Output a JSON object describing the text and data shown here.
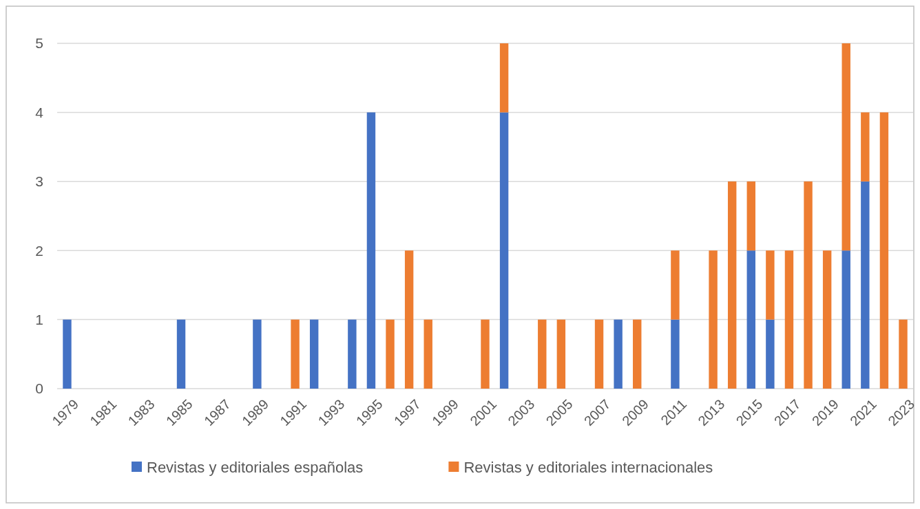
{
  "chart_data": {
    "type": "bar",
    "stacked": true,
    "categories": [
      "1979",
      null,
      "1981",
      null,
      "1983",
      null,
      "1985",
      null,
      "1987",
      null,
      "1989",
      null,
      "1991",
      null,
      "1993",
      null,
      "1995",
      null,
      "1997",
      null,
      "1999",
      null,
      "2001",
      null,
      "2003",
      null,
      "2005",
      null,
      "2007",
      null,
      "2009",
      null,
      "2011",
      null,
      "2013",
      null,
      "2015",
      null,
      "2017",
      null,
      "2019",
      null,
      "2021",
      null,
      "2023"
    ],
    "series": [
      {
        "name": "Revistas y editoriales españolas",
        "color": "#4472c4",
        "values": [
          1,
          0,
          0,
          0,
          0,
          0,
          1,
          0,
          0,
          0,
          1,
          0,
          0,
          1,
          0,
          1,
          4,
          0,
          0,
          0,
          0,
          0,
          0,
          4,
          0,
          0,
          0,
          0,
          0,
          1,
          0,
          0,
          1,
          0,
          0,
          0,
          2,
          1,
          0,
          0,
          0,
          2,
          3,
          0,
          0
        ]
      },
      {
        "name": "Revistas y editoriales internacionales",
        "color": "#ed7d31",
        "values": [
          0,
          0,
          0,
          0,
          0,
          0,
          0,
          0,
          0,
          0,
          0,
          0,
          1,
          0,
          0,
          0,
          0,
          1,
          2,
          1,
          0,
          0,
          1,
          1,
          0,
          1,
          1,
          0,
          1,
          0,
          1,
          0,
          1,
          0,
          2,
          3,
          1,
          1,
          2,
          3,
          2,
          3,
          1,
          4,
          1
        ]
      }
    ],
    "ylim": [
      0,
      5
    ],
    "yticks": [
      0,
      1,
      2,
      3,
      4,
      5
    ],
    "grid": "y",
    "legend": "bottom"
  }
}
